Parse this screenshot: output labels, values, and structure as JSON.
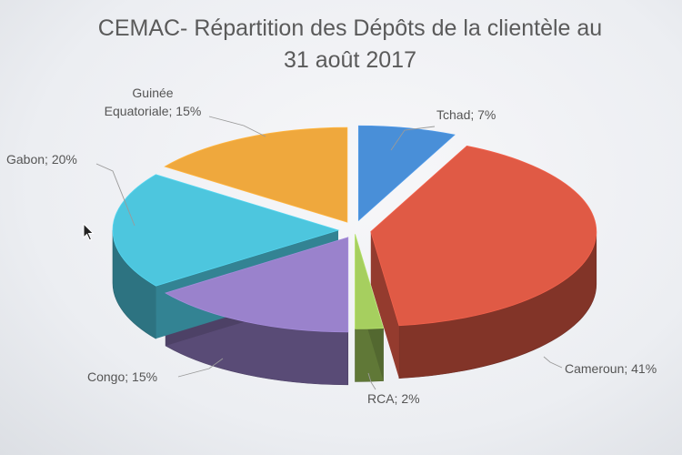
{
  "chart_data": {
    "type": "pie",
    "title_lines": [
      "CEMAC- Répartition des Dépôts de la clientèle au",
      "31 août 2017"
    ],
    "style": "3d-exploded",
    "slices": [
      {
        "name": "Tchad",
        "value": 7,
        "label": "Tchad; 7%",
        "color": "#4a8fd8"
      },
      {
        "name": "Cameroun",
        "value": 41,
        "label": "Cameroun; 41%",
        "color": "#e05a45"
      },
      {
        "name": "RCA",
        "value": 2,
        "label": "RCA; 2%",
        "color": "#a6cf5f"
      },
      {
        "name": "Congo",
        "value": 15,
        "label": "Congo; 15%",
        "color": "#9a82cc"
      },
      {
        "name": "Gabon",
        "value": 20,
        "label": "Gabon; 20%",
        "color": "#4ec6de"
      },
      {
        "name": "Guinée Equatoriale",
        "value": 15,
        "label_lines": [
          "Guinée",
          "Equatoriale; 15%"
        ],
        "color": "#efa83c"
      }
    ]
  }
}
